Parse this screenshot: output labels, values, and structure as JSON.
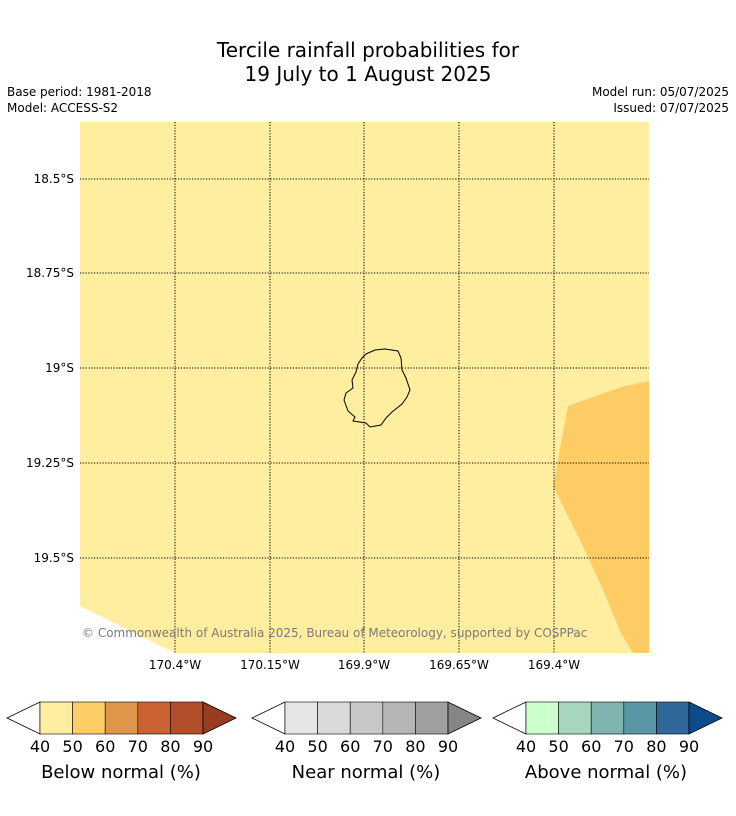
{
  "title": {
    "line1": "Tercile rainfall probabilities for",
    "line2": "19 July to 1 August 2025"
  },
  "meta": {
    "base_period": "Base period: 1981-2018",
    "model": "Model: ACCESS-S2",
    "model_run": "Model run: 05/07/2025",
    "issued": "Issued: 07/07/2025"
  },
  "map": {
    "background_color": "#ffeda0",
    "lat_labels": [
      "18.5°S",
      "18.75°S",
      "19°S",
      "19.25°S",
      "19.5°S"
    ],
    "lon_labels": [
      "170.4°W",
      "170.15°W",
      "169.9°W",
      "169.65°W",
      "169.4°W"
    ],
    "credit": "© Commonwealth of Australia 2025, Bureau of Meteorology, supported by COSPPac",
    "region_colors": {
      "below_50_60": "#fecc65"
    }
  },
  "legends": [
    {
      "title": "Below normal (%)",
      "ticks": [
        "40",
        "50",
        "60",
        "70",
        "80",
        "90"
      ],
      "colors": [
        "#ffeda0",
        "#fecc65",
        "#e0964a",
        "#cc6232",
        "#b34d2a",
        "#993d22"
      ]
    },
    {
      "title": "Near normal (%)",
      "ticks": [
        "40",
        "50",
        "60",
        "70",
        "80",
        "90"
      ],
      "colors": [
        "#e6e6e6",
        "#d9d9d9",
        "#c8c8c8",
        "#b5b5b5",
        "#a0a0a0",
        "#858585"
      ]
    },
    {
      "title": "Above normal (%)",
      "ticks": [
        "40",
        "50",
        "60",
        "70",
        "80",
        "90"
      ],
      "colors": [
        "#ccffcc",
        "#a6d6bc",
        "#80b4b0",
        "#5a96a6",
        "#306899",
        "#0d4c8a"
      ]
    }
  ]
}
